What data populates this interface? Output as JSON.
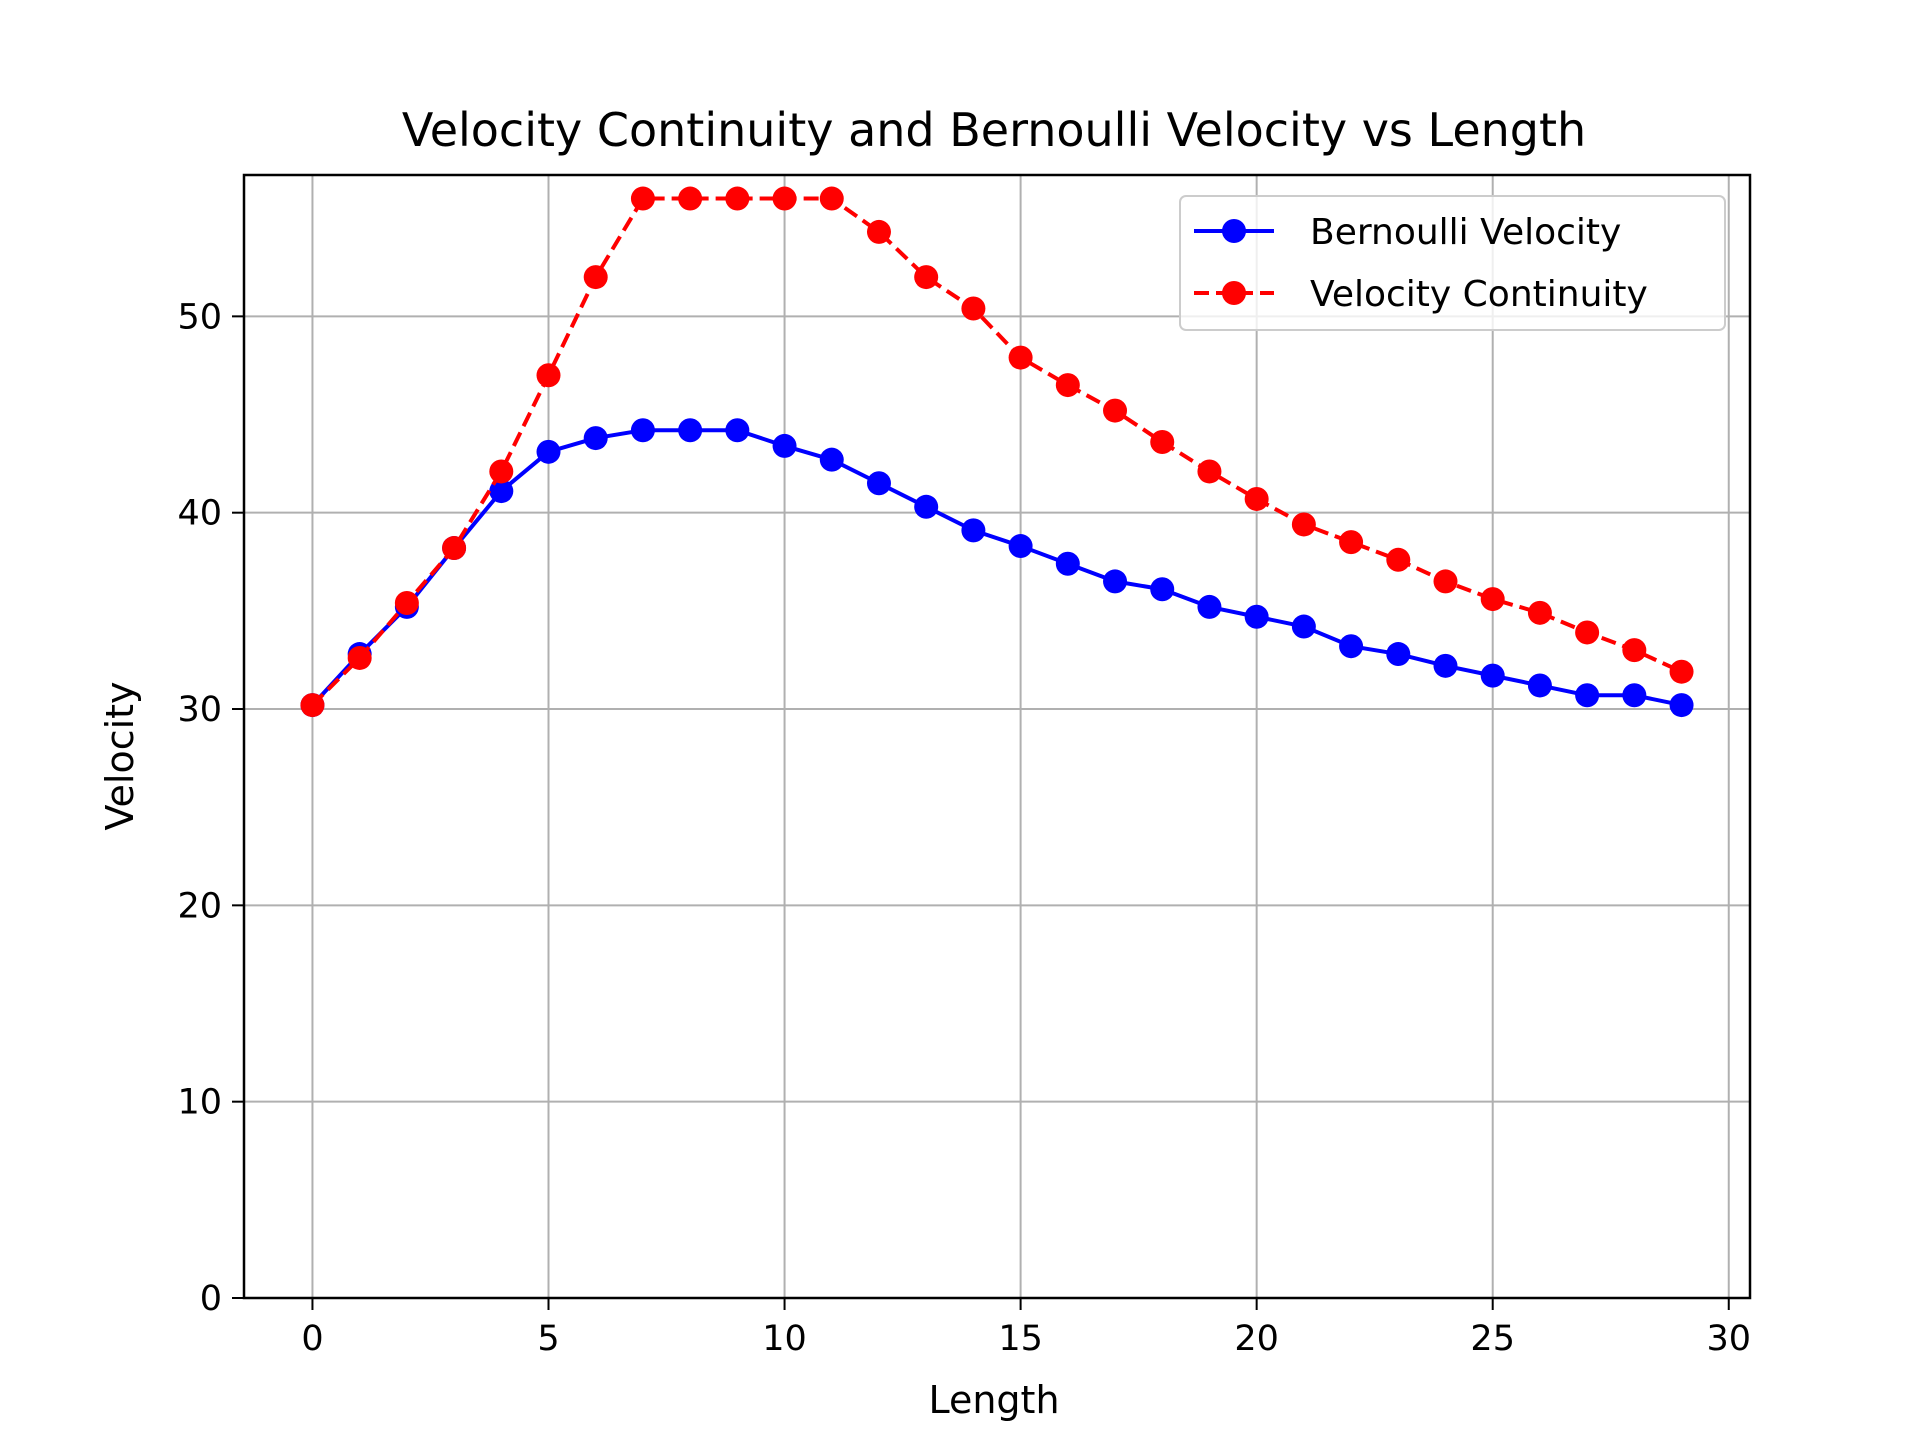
{
  "chart_data": {
    "type": "line",
    "title": "Velocity Continuity and Bernoulli Velocity vs Length",
    "xlabel": "Length",
    "ylabel": "Velocity",
    "xlim": [
      -1.45,
      30.45
    ],
    "ylim": [
      0,
      57.2
    ],
    "xticks": [
      0,
      5,
      10,
      15,
      20,
      25,
      30
    ],
    "yticks": [
      0,
      10,
      20,
      30,
      40,
      50
    ],
    "grid": true,
    "legend_position": "upper right",
    "x": [
      0,
      1,
      2,
      3,
      4,
      5,
      6,
      7,
      8,
      9,
      10,
      11,
      12,
      13,
      14,
      15,
      16,
      17,
      18,
      19,
      20,
      21,
      22,
      23,
      24,
      25,
      26,
      27,
      28,
      29
    ],
    "series": [
      {
        "name": "Bernoulli Velocity",
        "color": "#0000ff",
        "linestyle": "solid",
        "marker": "circle",
        "values": [
          30.2,
          32.8,
          35.2,
          38.2,
          41.1,
          43.1,
          43.8,
          44.2,
          44.2,
          44.2,
          43.4,
          42.7,
          41.5,
          40.3,
          39.1,
          38.3,
          37.4,
          36.5,
          36.1,
          35.2,
          34.7,
          34.2,
          33.2,
          32.8,
          32.2,
          31.7,
          31.2,
          30.7,
          30.7,
          30.2
        ]
      },
      {
        "name": "Velocity Continuity",
        "color": "#ff0000",
        "linestyle": "dashed",
        "marker": "circle",
        "values": [
          30.2,
          32.6,
          35.4,
          38.2,
          42.1,
          47.0,
          52.0,
          56.0,
          56.0,
          56.0,
          56.0,
          56.0,
          54.3,
          52.0,
          50.4,
          47.9,
          46.5,
          45.2,
          43.6,
          42.1,
          40.7,
          39.4,
          38.5,
          37.6,
          36.5,
          35.6,
          34.9,
          33.9,
          33.0,
          31.9
        ]
      }
    ]
  }
}
